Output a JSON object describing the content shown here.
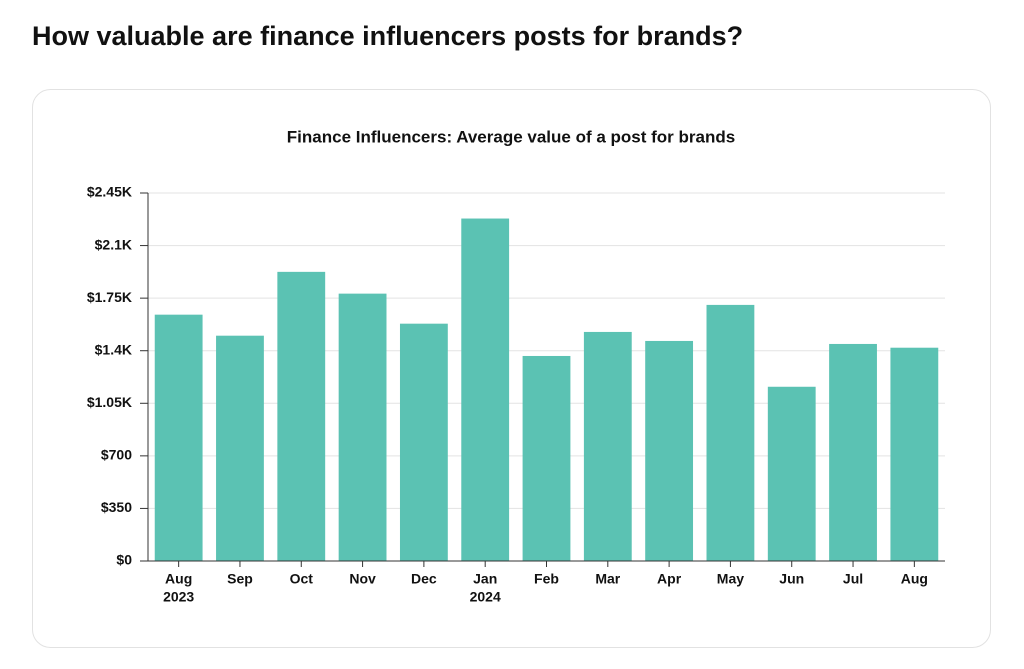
{
  "page_title": "How valuable are finance influencers posts for brands?",
  "chart_data": {
    "type": "bar",
    "title": "Finance Influencers: Average value of a post for brands",
    "categories": [
      "Aug",
      "Sep",
      "Oct",
      "Nov",
      "Dec",
      "Jan",
      "Feb",
      "Mar",
      "Apr",
      "May",
      "Jun",
      "Jul",
      "Aug"
    ],
    "category_years": [
      "2023",
      null,
      null,
      null,
      null,
      "2024",
      null,
      null,
      null,
      null,
      null,
      null,
      null
    ],
    "values": [
      1640,
      1500,
      1925,
      1780,
      1580,
      2280,
      1365,
      1525,
      1465,
      1705,
      1160,
      1445,
      1420
    ],
    "color": "#5bc2b3",
    "ylim": [
      0,
      2450
    ],
    "yticks": [
      {
        "value": 0,
        "label": "$0"
      },
      {
        "value": 350,
        "label": "$350"
      },
      {
        "value": 700,
        "label": "$700"
      },
      {
        "value": 1050,
        "label": "$1.05K"
      },
      {
        "value": 1400,
        "label": "$1.4K"
      },
      {
        "value": 1750,
        "label": "$1.75K"
      },
      {
        "value": 2100,
        "label": "$2.1K"
      },
      {
        "value": 2450,
        "label": "$2.45K"
      }
    ],
    "grid": true
  }
}
